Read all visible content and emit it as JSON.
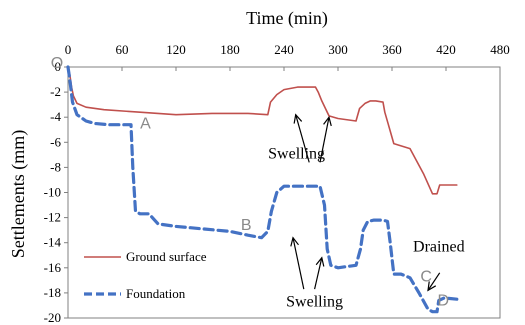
{
  "chart_data": {
    "type": "line",
    "xlabel": "Time (min)",
    "ylabel": "Settlements (mm)",
    "xlim": [
      0,
      480
    ],
    "ylim": [
      -20,
      0
    ],
    "x_ticks": [
      "0",
      "60",
      "120",
      "180",
      "240",
      "300",
      "360",
      "420",
      "480"
    ],
    "y_ticks": [
      "0",
      "-2",
      "-4",
      "-6",
      "-8",
      "-10",
      "-12",
      "-14",
      "-16",
      "-18",
      "-20"
    ],
    "grid": false,
    "legend_position": "bottom-left",
    "origin_label": "O",
    "series": [
      {
        "name": "Ground surface",
        "color": "#c0504d",
        "style": "solid",
        "x": [
          0,
          2,
          4,
          6,
          10,
          20,
          40,
          80,
          120,
          160,
          200,
          222,
          225,
          232,
          240,
          255,
          265,
          270,
          275,
          278,
          282,
          290,
          300,
          320,
          324,
          330,
          336,
          342,
          350,
          352,
          356,
          362,
          380,
          395,
          405,
          410,
          413,
          425,
          432
        ],
        "y": [
          0,
          -0.6,
          -1.6,
          -2.3,
          -2.9,
          -3.2,
          -3.4,
          -3.6,
          -3.8,
          -3.7,
          -3.7,
          -3.8,
          -2.8,
          -2.2,
          -1.8,
          -1.6,
          -1.6,
          -1.6,
          -1.6,
          -2.0,
          -2.7,
          -3.9,
          -4.1,
          -4.3,
          -3.3,
          -2.9,
          -2.7,
          -2.7,
          -2.8,
          -3.6,
          -4.6,
          -6.1,
          -6.5,
          -8.5,
          -10.1,
          -10.1,
          -9.4,
          -9.4,
          -9.4
        ]
      },
      {
        "name": "Foundation",
        "color": "#4472c4",
        "style": "dashed",
        "x": [
          0,
          2,
          5,
          10,
          20,
          30,
          45,
          60,
          70,
          72,
          75,
          80,
          90,
          100,
          120,
          150,
          180,
          200,
          215,
          222,
          226,
          232,
          240,
          260,
          280,
          285,
          288,
          292,
          300,
          310,
          320,
          325,
          328,
          333,
          340,
          350,
          355,
          358,
          362,
          370,
          380,
          390,
          400,
          405,
          410,
          412,
          418,
          432
        ],
        "y": [
          0,
          -1.0,
          -2.8,
          -3.8,
          -4.3,
          -4.5,
          -4.6,
          -4.6,
          -4.6,
          -8.0,
          -11.5,
          -11.7,
          -11.7,
          -12.5,
          -12.7,
          -12.9,
          -13.1,
          -13.4,
          -13.6,
          -13.1,
          -11.5,
          -10.0,
          -9.5,
          -9.5,
          -9.5,
          -11.0,
          -14.5,
          -15.8,
          -16.0,
          -15.9,
          -15.8,
          -14.5,
          -13.0,
          -12.3,
          -12.2,
          -12.2,
          -12.3,
          -14.0,
          -16.5,
          -16.5,
          -16.8,
          -18.0,
          -19.3,
          -19.5,
          -19.5,
          -18.6,
          -18.4,
          -18.5
        ]
      }
    ],
    "annotations": [
      {
        "text": "Swelling",
        "x": 254,
        "y": -7.3
      },
      {
        "text": "Swelling",
        "x": 274,
        "y": -19.1
      },
      {
        "text": "Drained",
        "x": 412,
        "y": -14.7
      },
      {
        "text": "A",
        "x": 86,
        "y": -4.9
      },
      {
        "text": "B",
        "x": 198,
        "y": -13.0
      },
      {
        "text": "C",
        "x": 398,
        "y": -17.1
      },
      {
        "text": "D",
        "x": 417,
        "y": -19.0
      }
    ],
    "arrows": [
      {
        "from": [
          268,
          -7.6
        ],
        "to": [
          253,
          -3.8
        ]
      },
      {
        "from": [
          280,
          -7.6
        ],
        "to": [
          290,
          -4.0
        ]
      },
      {
        "from": [
          262,
          -17.7
        ],
        "to": [
          250,
          -13.6
        ]
      },
      {
        "from": [
          274,
          -17.7
        ],
        "to": [
          282,
          -15.2
        ]
      },
      {
        "from": [
          413,
          -16.4
        ],
        "to": [
          400,
          -17.8
        ]
      }
    ]
  }
}
